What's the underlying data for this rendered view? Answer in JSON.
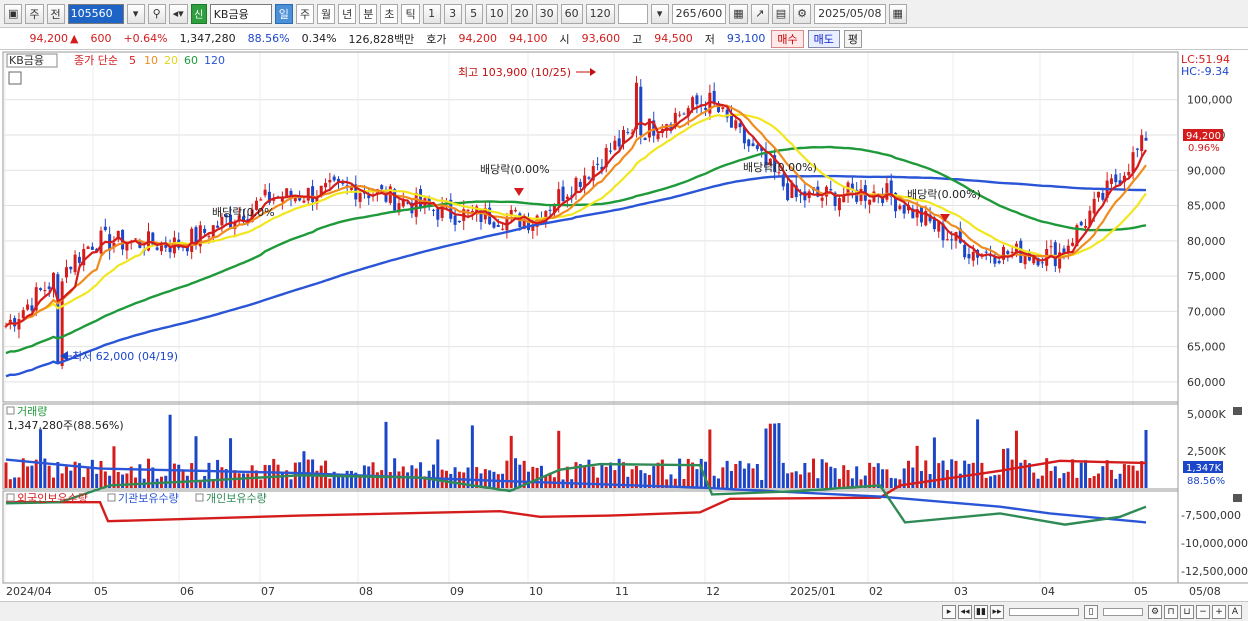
{
  "toolbar": {
    "market_type": "주",
    "mode": "전",
    "stock_code": "105560",
    "sin_label": "신",
    "stock_name": "KB금융",
    "periods": [
      "일",
      "주",
      "월",
      "년",
      "분",
      "초",
      "틱"
    ],
    "active_period": "일",
    "numbers": [
      "1",
      "3",
      "5",
      "10",
      "20",
      "30",
      "60",
      "120"
    ],
    "count": "265",
    "count_total": "/600",
    "date": "2025/05/08"
  },
  "info": {
    "price": "94,200",
    "change": "600",
    "change_pct": "+0.64%",
    "volume": "1,347,280",
    "vol_ratio": "88.56%",
    "turnover": "0.34%",
    "amount": "126,828백만",
    "ask_label": "호가",
    "ask1": "94,200",
    "ask2": "94,100",
    "open_label": "시",
    "open": "93,600",
    "high_label": "고",
    "high": "94,500",
    "low_label": "저",
    "low": "93,100",
    "buy": "매수",
    "sell": "매도",
    "avg": "평"
  },
  "legend": {
    "name": "KB금융",
    "main": "종가 단순",
    "ma5": "5",
    "ma10": "10",
    "ma20": "20",
    "ma60": "60",
    "ma120": "120"
  },
  "colors": {
    "candle_up": "#d41c1c",
    "candle_down": "#1c46c8",
    "ma5": "#d41c1c",
    "ma10": "#f08c1e",
    "ma20": "#f2e61e",
    "ma60": "#1f9a3a",
    "ma120": "#2a55d6",
    "foreign": "#d41c1c",
    "inst": "#2a55d6",
    "indiv": "#2f8a55"
  },
  "price_axis": {
    "lc": "LC:51.94",
    "hc": "HC:-9.34",
    "ticks": [
      "100,000",
      "95,000",
      "90,000",
      "85,000",
      "80,000",
      "75,000",
      "70,000",
      "65,000",
      "60,000"
    ],
    "current": "94,200",
    "current_pct": "0.96%"
  },
  "annotations": {
    "high": "최고 103,900 (10/25)",
    "low": "최저 62,000 (04/19)",
    "dividend": "배당락(0.00%)",
    "dividend_partial": "배당락(0.00%",
    "dividend_short": "배당락(0.0",
    "dividend_tiny": "배당락(0.0%"
  },
  "volume_panel": {
    "title": "거래량",
    "value": "1,347,280주(88.56%)",
    "ticks": [
      "5,000K",
      "2,500K"
    ],
    "current": "1,347K",
    "current_pct": "88.56%"
  },
  "holdings_panel": {
    "foreign": "외국인보유수량",
    "inst": "기관보유수량",
    "indiv": "개인보유수량",
    "ticks": [
      "-7,500,000",
      "-10,000,000",
      "-12,500,000"
    ]
  },
  "x_axis": {
    "labels": [
      "2024/04",
      "05",
      "06",
      "07",
      "08",
      "09",
      "10",
      "11",
      "12",
      "2025/01",
      "02",
      "03",
      "04",
      "05",
      "05/08"
    ]
  },
  "chart_data": {
    "type": "candlestick",
    "x": [
      "2024-04",
      "2024-05",
      "2024-06",
      "2024-07",
      "2024-08",
      "2024-09",
      "2024-10",
      "2024-11",
      "2024-12",
      "2025-01",
      "2025-02",
      "2025-03",
      "2025-04",
      "2025-05"
    ],
    "close_approx": [
      68000,
      80000,
      79500,
      86000,
      87500,
      84000,
      83000,
      94000,
      100000,
      86000,
      87000,
      78500,
      78000,
      94200
    ],
    "ylim": [
      58000,
      104500
    ],
    "high_point": {
      "value": 103900,
      "date": "10/25"
    },
    "low_point": {
      "value": 62000,
      "date": "04/19"
    },
    "last_close": 94200
  }
}
